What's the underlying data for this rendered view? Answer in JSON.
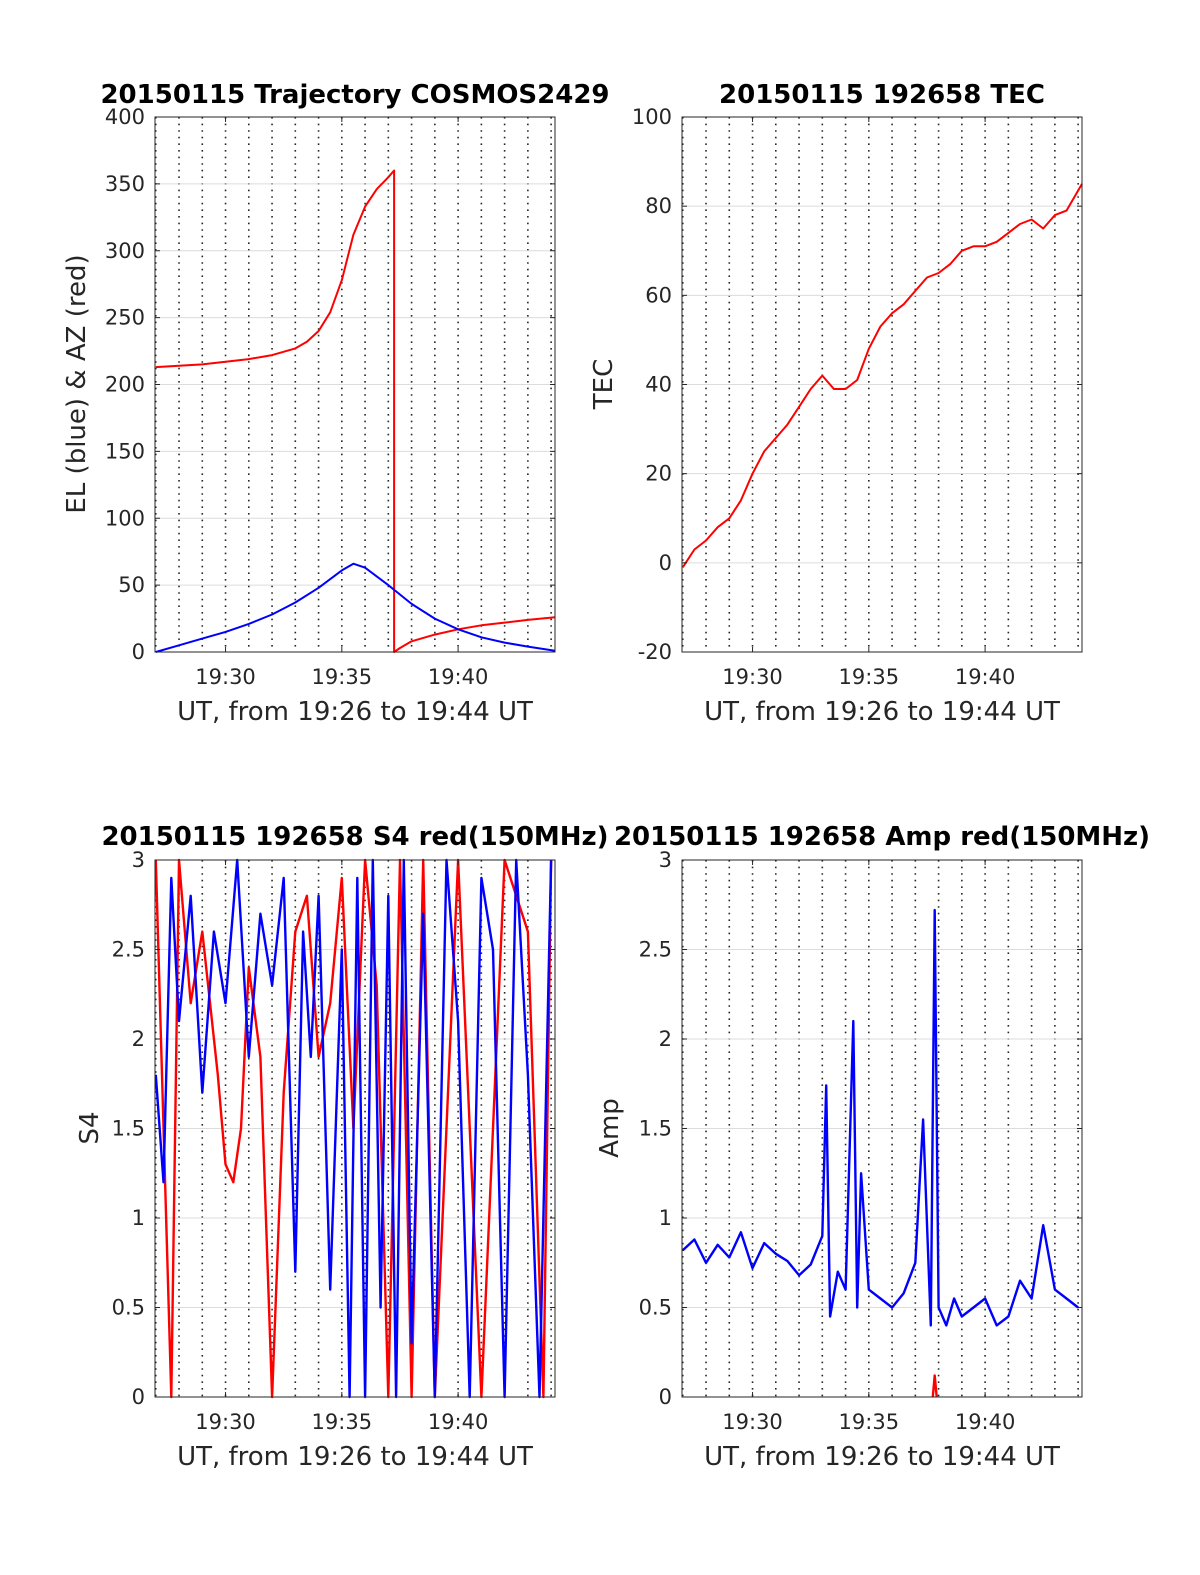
{
  "chart_data": [
    {
      "type": "line",
      "title": "20150115 Trajectory COSMOS2429",
      "xlabel": "UT, from 19:26 to 19:44 UT",
      "ylabel": "EL (blue) & AZ (red)",
      "xlim": [
        "19:26:58",
        "19:44:10"
      ],
      "ylim": [
        0,
        400
      ],
      "xticks": [
        "19:30",
        "19:35",
        "19:40"
      ],
      "yticks": [
        "0",
        "50",
        "100",
        "150",
        "200",
        "250",
        "300",
        "350",
        "400"
      ],
      "grid": "dotted vertical lines, light horizontal lines",
      "series": [
        {
          "color": "#ff0000",
          "x": [
            "19:27:00",
            "19:28:00",
            "19:29:00",
            "19:30:00",
            "19:31:00",
            "19:32:00",
            "19:33:00",
            "19:33:30",
            "19:34:00",
            "19:34:30",
            "19:35:00",
            "19:35:30",
            "19:36:00",
            "19:36:30",
            "19:37:00",
            "19:37:15",
            "19:37:15",
            "19:37:30",
            "19:38:00",
            "19:39:00",
            "19:40:00",
            "19:41:00",
            "19:42:00",
            "19:43:00",
            "19:44:10"
          ],
          "y": [
            213,
            214,
            215,
            217,
            219,
            222,
            227,
            232,
            240,
            254,
            278,
            312,
            333,
            346,
            355,
            360,
            0,
            3,
            8,
            13,
            17,
            20,
            22,
            24,
            26
          ]
        },
        {
          "color": "#0000ff",
          "x": [
            "19:27:00",
            "19:28:00",
            "19:29:00",
            "19:30:00",
            "19:31:00",
            "19:32:00",
            "19:33:00",
            "19:34:00",
            "19:35:00",
            "19:35:30",
            "19:36:00",
            "19:37:00",
            "19:38:00",
            "19:39:00",
            "19:40:00",
            "19:41:00",
            "19:42:00",
            "19:43:00",
            "19:44:10"
          ],
          "y": [
            0,
            5,
            10,
            15,
            21,
            28,
            37,
            48,
            61,
            66,
            63,
            50,
            36,
            25,
            17,
            11,
            7,
            4,
            1
          ]
        }
      ]
    },
    {
      "type": "line",
      "title": "20150115 192658 TEC",
      "xlabel": "UT, from 19:26 to 19:44 UT",
      "ylabel": "TEC",
      "xlim": [
        "19:26:58",
        "19:44:10"
      ],
      "ylim": [
        -20,
        100
      ],
      "xticks": [
        "19:30",
        "19:35",
        "19:40"
      ],
      "yticks": [
        "-20",
        "0",
        "20",
        "40",
        "60",
        "80",
        "100"
      ],
      "series": [
        {
          "color": "#ff0000",
          "x": [
            "19:27:00",
            "19:27:30",
            "19:28:00",
            "19:28:30",
            "19:29:00",
            "19:29:30",
            "19:30:00",
            "19:30:30",
            "19:31:00",
            "19:31:30",
            "19:32:00",
            "19:32:30",
            "19:33:00",
            "19:33:30",
            "19:34:00",
            "19:34:30",
            "19:35:00",
            "19:35:30",
            "19:36:00",
            "19:36:30",
            "19:37:00",
            "19:37:30",
            "19:38:00",
            "19:38:30",
            "19:39:00",
            "19:39:30",
            "19:40:00",
            "19:40:30",
            "19:41:00",
            "19:41:30",
            "19:42:00",
            "19:42:30",
            "19:43:00",
            "19:43:30",
            "19:44:10"
          ],
          "y": [
            -1,
            3,
            5,
            8,
            10,
            14,
            20,
            25,
            28,
            31,
            35,
            39,
            42,
            39,
            39,
            41,
            48,
            53,
            56,
            58,
            61,
            64,
            65,
            67,
            70,
            71,
            71,
            72,
            74,
            76,
            77,
            75,
            78,
            79,
            85
          ]
        }
      ]
    },
    {
      "type": "line",
      "title": "20150115 192658 S4 red(150MHz)",
      "xlabel": "UT, from 19:26 to 19:44 UT",
      "ylabel": "S4",
      "xlim": [
        "19:26:58",
        "19:44:10"
      ],
      "ylim": [
        0,
        3
      ],
      "xticks": [
        "19:30",
        "19:35",
        "19:40"
      ],
      "yticks": [
        "0",
        "0.5",
        "1",
        "1.5",
        "2",
        "2.5",
        "3"
      ],
      "series": [
        {
          "color": "#ff0000",
          "x": [
            "19:27:00",
            "19:27:40",
            "19:28:00",
            "19:28:30",
            "19:29:00",
            "19:29:40",
            "19:30:00",
            "19:30:20",
            "19:30:40",
            "19:31:00",
            "19:31:30",
            "19:32:00",
            "19:32:30",
            "19:33:00",
            "19:33:30",
            "19:34:00",
            "19:34:30",
            "19:35:00",
            "19:35:30",
            "19:36:00",
            "19:36:30",
            "19:37:00",
            "19:37:30",
            "19:38:00",
            "19:38:30",
            "19:39:00",
            "19:40:00",
            "19:41:00",
            "19:42:00",
            "19:43:00",
            "19:43:40",
            "19:44:00"
          ],
          "y": [
            3,
            0,
            3,
            2.2,
            2.6,
            1.8,
            1.3,
            1.2,
            1.5,
            2.4,
            1.9,
            0,
            1.7,
            2.6,
            2.8,
            1.9,
            2.2,
            2.9,
            1.5,
            3,
            2.3,
            0,
            3,
            0,
            3,
            0,
            3,
            0,
            3,
            2.6,
            0,
            3
          ]
        },
        {
          "color": "#0000ff",
          "x": [
            "19:27:00",
            "19:27:20",
            "19:27:40",
            "19:28:00",
            "19:28:30",
            "19:29:00",
            "19:29:30",
            "19:30:00",
            "19:30:30",
            "19:31:00",
            "19:31:30",
            "19:32:00",
            "19:32:30",
            "19:33:00",
            "19:33:20",
            "19:33:40",
            "19:34:00",
            "19:34:30",
            "19:35:00",
            "19:35:20",
            "19:35:40",
            "19:36:00",
            "19:36:20",
            "19:36:40",
            "19:37:00",
            "19:37:20",
            "19:37:40",
            "19:38:00",
            "19:38:30",
            "19:39:00",
            "19:39:30",
            "19:40:00",
            "19:40:30",
            "19:41:00",
            "19:41:30",
            "19:42:00",
            "19:42:30",
            "19:43:00",
            "19:43:30",
            "19:44:00"
          ],
          "y": [
            1.8,
            1.2,
            2.9,
            2.1,
            2.8,
            1.7,
            2.6,
            2.2,
            3,
            1.9,
            2.7,
            2.3,
            2.9,
            0.7,
            2.6,
            1.9,
            2.8,
            0.6,
            2.5,
            0,
            2.9,
            0,
            3,
            0.5,
            2.8,
            0,
            3,
            0.3,
            2.7,
            0,
            3,
            2.1,
            0,
            2.9,
            2.5,
            0,
            3,
            1.8,
            0,
            3
          ]
        }
      ]
    },
    {
      "type": "line",
      "title": "20150115 192658 Amp red(150MHz)",
      "xlabel": "UT, from 19:26 to 19:44 UT",
      "ylabel": "Amp",
      "xlim": [
        "19:26:58",
        "19:44:10"
      ],
      "ylim": [
        0,
        3
      ],
      "xticks": [
        "19:30",
        "19:35",
        "19:40"
      ],
      "yticks": [
        "0",
        "0.5",
        "1",
        "1.5",
        "2",
        "2.5",
        "3"
      ],
      "series": [
        {
          "color": "#0000ff",
          "x": [
            "19:27:00",
            "19:27:30",
            "19:28:00",
            "19:28:30",
            "19:29:00",
            "19:29:30",
            "19:30:00",
            "19:30:30",
            "19:31:00",
            "19:31:30",
            "19:32:00",
            "19:32:30",
            "19:33:00",
            "19:33:10",
            "19:33:20",
            "19:33:40",
            "19:34:00",
            "19:34:20",
            "19:34:30",
            "19:34:40",
            "19:35:00",
            "19:35:30",
            "19:36:00",
            "19:36:30",
            "19:37:00",
            "19:37:20",
            "19:37:40",
            "19:37:50",
            "19:38:00",
            "19:38:20",
            "19:38:40",
            "19:39:00",
            "19:39:30",
            "19:40:00",
            "19:40:30",
            "19:41:00",
            "19:41:30",
            "19:42:00",
            "19:42:30",
            "19:43:00",
            "19:43:30",
            "19:44:00"
          ],
          "y": [
            0.82,
            0.88,
            0.75,
            0.85,
            0.78,
            0.92,
            0.72,
            0.86,
            0.8,
            0.76,
            0.68,
            0.74,
            0.9,
            1.74,
            0.45,
            0.7,
            0.6,
            2.1,
            0.5,
            1.25,
            0.6,
            0.55,
            0.5,
            0.58,
            0.75,
            1.55,
            0.4,
            2.72,
            0.5,
            0.4,
            0.55,
            0.45,
            0.5,
            0.55,
            0.4,
            0.45,
            0.65,
            0.55,
            0.96,
            0.6,
            0.55,
            0.5
          ]
        },
        {
          "color": "#ff0000",
          "x": [
            "19:37:45",
            "19:37:50",
            "19:37:55"
          ],
          "y": [
            0,
            0.12,
            0
          ]
        }
      ]
    }
  ]
}
